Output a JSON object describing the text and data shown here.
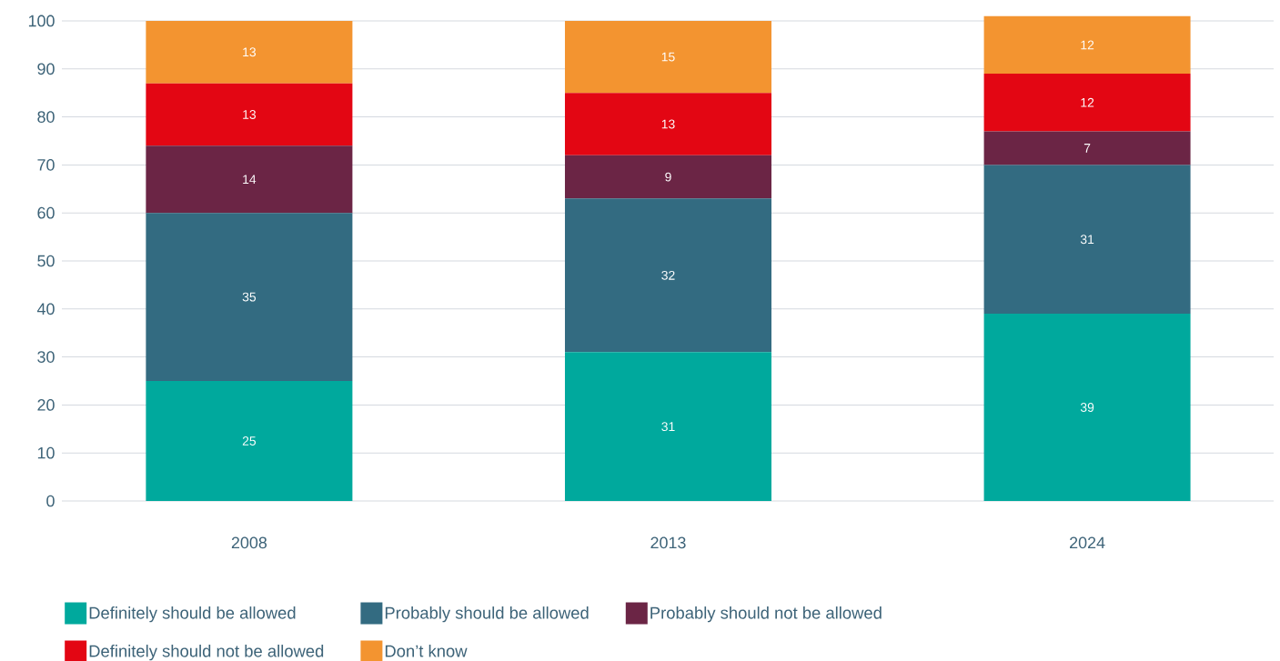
{
  "chart_data": {
    "type": "bar",
    "stacked": true,
    "categories": [
      "2008",
      "2013",
      "2024"
    ],
    "series": [
      {
        "name": "Definitely should be allowed",
        "color": "#00a99d",
        "values": [
          25,
          31,
          39
        ]
      },
      {
        "name": "Probably should be allowed",
        "color": "#336b81",
        "values": [
          35,
          32,
          31
        ]
      },
      {
        "name": "Probably should not be allowed",
        "color": "#6b2545",
        "values": [
          14,
          9,
          7
        ]
      },
      {
        "name": "Definitely should not be allowed",
        "color": "#e30613",
        "values": [
          13,
          13,
          12
        ]
      },
      {
        "name": "Don’t know",
        "color": "#f39430",
        "values": [
          13,
          15,
          12
        ]
      }
    ],
    "ylim": [
      0,
      101
    ],
    "yticks": [
      0,
      10,
      20,
      30,
      40,
      50,
      60,
      70,
      80,
      90,
      100
    ],
    "grid": "y",
    "legend": "bottom",
    "data_labels": true
  }
}
